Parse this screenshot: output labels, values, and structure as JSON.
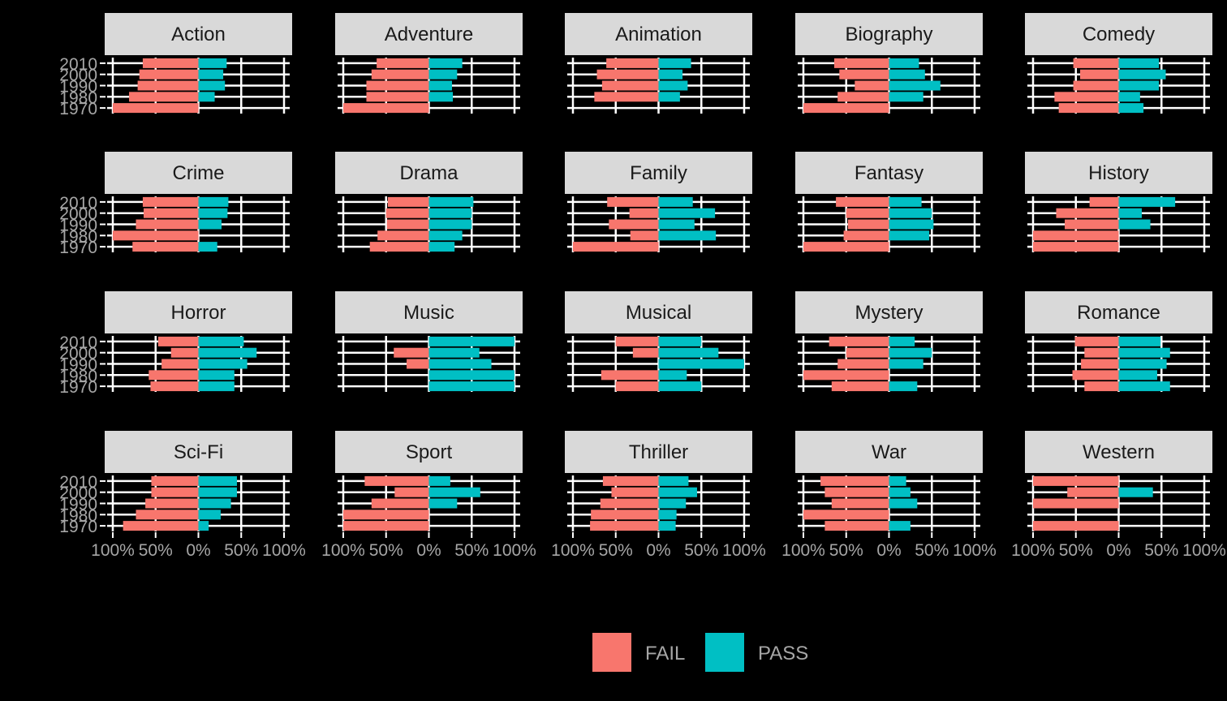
{
  "chart_data": {
    "type": "bar",
    "orientation": "horizontal",
    "layout": "faceted",
    "years": [
      1970,
      1980,
      1990,
      2000,
      2010
    ],
    "y_tick_labels": [
      "2010",
      "2000",
      "1990",
      "1980",
      "1970"
    ],
    "x_tick_labels": [
      "100%",
      "50%",
      "0%",
      "50%",
      "100%"
    ],
    "xlim": [
      -1,
      1
    ],
    "grid": true,
    "legend": {
      "position": "bottom"
    },
    "series": [
      {
        "name": "FAIL",
        "color": "#f8766d"
      },
      {
        "name": "PASS",
        "color": "#00bfc4"
      }
    ],
    "facets": [
      {
        "genre": "Action",
        "fail": [
          1.0,
          0.81,
          0.71,
          0.69,
          0.65
        ],
        "pass": [
          0.0,
          0.19,
          0.31,
          0.29,
          0.33
        ]
      },
      {
        "genre": "Adventure",
        "fail": [
          1.0,
          0.73,
          0.73,
          0.67,
          0.61
        ],
        "pass": [
          0.0,
          0.28,
          0.27,
          0.33,
          0.39
        ]
      },
      {
        "genre": "Animation",
        "fail": [
          0.0,
          0.75,
          0.66,
          0.72,
          0.61
        ],
        "pass": [
          0.0,
          0.25,
          0.34,
          0.28,
          0.38
        ]
      },
      {
        "genre": "Biography",
        "fail": [
          1.0,
          0.6,
          0.4,
          0.58,
          0.64
        ],
        "pass": [
          0.0,
          0.4,
          0.6,
          0.42,
          0.35
        ]
      },
      {
        "genre": "Comedy",
        "fail": [
          0.7,
          0.75,
          0.53,
          0.45,
          0.53
        ],
        "pass": [
          0.29,
          0.25,
          0.47,
          0.55,
          0.47
        ]
      },
      {
        "genre": "Crime",
        "fail": [
          0.77,
          1.0,
          0.73,
          0.64,
          0.65
        ],
        "pass": [
          0.22,
          0.0,
          0.27,
          0.34,
          0.35
        ]
      },
      {
        "genre": "Drama",
        "fail": [
          0.69,
          0.6,
          0.49,
          0.5,
          0.48
        ],
        "pass": [
          0.3,
          0.39,
          0.5,
          0.5,
          0.52
        ]
      },
      {
        "genre": "Family",
        "fail": [
          1.0,
          0.33,
          0.58,
          0.34,
          0.6
        ],
        "pass": [
          0.0,
          0.67,
          0.42,
          0.66,
          0.4
        ]
      },
      {
        "genre": "Fantasy",
        "fail": [
          1.0,
          0.53,
          0.48,
          0.5,
          0.62
        ],
        "pass": [
          0.0,
          0.47,
          0.52,
          0.5,
          0.38
        ]
      },
      {
        "genre": "History",
        "fail": [
          1.0,
          1.0,
          0.63,
          0.73,
          0.34
        ],
        "pass": [
          0.0,
          0.0,
          0.37,
          0.27,
          0.66
        ]
      },
      {
        "genre": "Horror",
        "fail": [
          0.56,
          0.58,
          0.43,
          0.32,
          0.47
        ],
        "pass": [
          0.42,
          0.42,
          0.57,
          0.68,
          0.53
        ]
      },
      {
        "genre": "Music",
        "fail": [
          0.0,
          0.0,
          0.26,
          0.41,
          0.0
        ],
        "pass": [
          1.0,
          1.0,
          0.73,
          0.59,
          1.0
        ]
      },
      {
        "genre": "Musical",
        "fail": [
          0.5,
          0.67,
          0.0,
          0.3,
          0.5
        ],
        "pass": [
          0.5,
          0.33,
          1.0,
          0.7,
          0.5
        ]
      },
      {
        "genre": "Mystery",
        "fail": [
          0.67,
          1.0,
          0.6,
          0.5,
          0.7
        ],
        "pass": [
          0.33,
          0.0,
          0.4,
          0.5,
          0.3
        ]
      },
      {
        "genre": "Romance",
        "fail": [
          0.4,
          0.54,
          0.44,
          0.4,
          0.51
        ],
        "pass": [
          0.6,
          0.45,
          0.56,
          0.6,
          0.49
        ]
      },
      {
        "genre": "Sci-Fi",
        "fail": [
          0.88,
          0.73,
          0.62,
          0.55,
          0.55
        ],
        "pass": [
          0.12,
          0.26,
          0.38,
          0.45,
          0.45
        ]
      },
      {
        "genre": "Sport",
        "fail": [
          1.0,
          1.0,
          0.67,
          0.4,
          0.75
        ],
        "pass": [
          0.0,
          0.0,
          0.33,
          0.6,
          0.25
        ]
      },
      {
        "genre": "Thriller",
        "fail": [
          0.8,
          0.79,
          0.68,
          0.55,
          0.65
        ],
        "pass": [
          0.2,
          0.21,
          0.32,
          0.45,
          0.35
        ]
      },
      {
        "genre": "War",
        "fail": [
          0.75,
          1.0,
          0.67,
          0.75,
          0.8
        ],
        "pass": [
          0.25,
          0.0,
          0.33,
          0.25,
          0.2
        ]
      },
      {
        "genre": "Western",
        "fail": [
          1.0,
          0.0,
          1.0,
          0.6,
          1.0
        ],
        "pass": [
          0.0,
          0.0,
          0.0,
          0.4,
          0.0
        ]
      }
    ]
  }
}
